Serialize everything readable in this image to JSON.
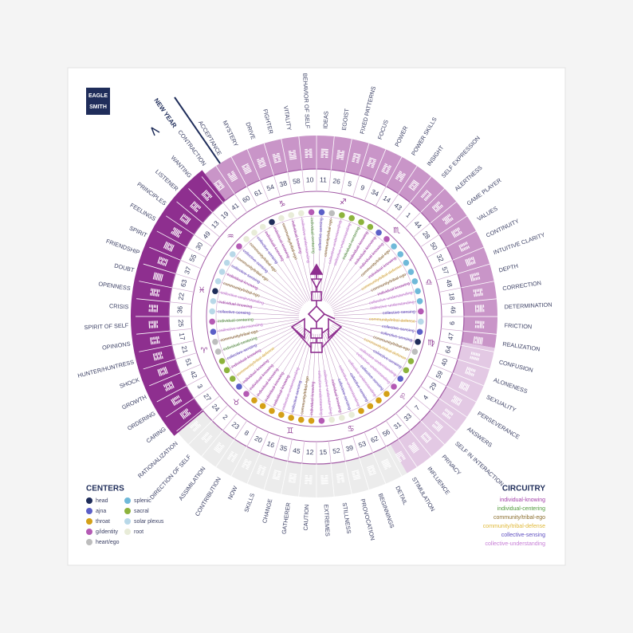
{
  "logo": {
    "line1": "EAGLE",
    "line2": "SMITH"
  },
  "new_year": "NEW YEAR",
  "gates": [
    {
      "number": 10,
      "keyword": "BEHAVIOR OF SELF",
      "circuit": "individual-centering",
      "dot_color": "#b45ab4"
    },
    {
      "number": 11,
      "keyword": "IDEAS",
      "circuit": "collective-sensing",
      "dot_color": "#5b5fc7"
    },
    {
      "number": 26,
      "keyword": "EGOIST",
      "circuit": "community/tribal-ego",
      "dot_color": "#bdbdbd"
    },
    {
      "number": 5,
      "keyword": "FIXED PATTERNS",
      "circuit": "collective-understanding",
      "dot_color": "#8db33c"
    },
    {
      "number": 9,
      "keyword": "FOCUS",
      "circuit": "collective-understanding",
      "dot_color": "#8db33c"
    },
    {
      "number": 34,
      "keyword": "POWER",
      "circuit": "individual-centering",
      "dot_color": "#8db33c"
    },
    {
      "number": 14,
      "keyword": "POWER SKILLS",
      "circuit": "individual-knowing",
      "dot_color": "#8db33c"
    },
    {
      "number": 43,
      "keyword": "INSIGHT",
      "circuit": "individual-knowing",
      "dot_color": "#5b5fc7"
    },
    {
      "number": 1,
      "keyword": "SELF EXPRESSION",
      "circuit": "individual-knowing",
      "dot_color": "#b45ab4"
    },
    {
      "number": 44,
      "keyword": "ALERTNESS",
      "circuit": "community/tribal-ego",
      "dot_color": "#6fb9d9"
    },
    {
      "number": 28,
      "keyword": "GAME PLAYER",
      "circuit": "individual-knowing",
      "dot_color": "#6fb9d9"
    },
    {
      "number": 50,
      "keyword": "VALUES",
      "circuit": "community/tribal-defense",
      "dot_color": "#6fb9d9"
    },
    {
      "number": 32,
      "keyword": "CONTINUITY",
      "circuit": "community/tribal-ego",
      "dot_color": "#6fb9d9"
    },
    {
      "number": 57,
      "keyword": "INTUITIVE CLARITY",
      "circuit": "individual-knowing",
      "dot_color": "#6fb9d9"
    },
    {
      "number": 48,
      "keyword": "DEPTH",
      "circuit": "collective-understanding",
      "dot_color": "#6fb9d9"
    },
    {
      "number": 18,
      "keyword": "CORRECTION",
      "circuit": "collective-understanding",
      "dot_color": "#6fb9d9"
    },
    {
      "number": 46,
      "keyword": "DETERMINATION",
      "circuit": "collective-sensing",
      "dot_color": "#b45ab4"
    },
    {
      "number": 6,
      "keyword": "FRICTION",
      "circuit": "community/tribal-defense",
      "dot_color": "#b8d8e8"
    },
    {
      "number": 47,
      "keyword": "REALIZATION",
      "circuit": "collective-sensing",
      "dot_color": "#5b5fc7"
    },
    {
      "number": 64,
      "keyword": "CONFUSION",
      "circuit": "collective-sensing",
      "dot_color": "#1f2d5a"
    },
    {
      "number": 40,
      "keyword": "ALONENESS",
      "circuit": "community/tribal-ego",
      "dot_color": "#bdbdbd"
    },
    {
      "number": 59,
      "keyword": "SEXUALITY",
      "circuit": "community/tribal-defense",
      "dot_color": "#8db33c"
    },
    {
      "number": 29,
      "keyword": "PERSEVERANCE",
      "circuit": "collective-sensing",
      "dot_color": "#8db33c"
    },
    {
      "number": 4,
      "keyword": "ANSWERS",
      "circuit": "collective-understanding",
      "dot_color": "#5b5fc7"
    },
    {
      "number": 7,
      "keyword": "SELF IN INTERACTION",
      "circuit": "collective-understanding",
      "dot_color": "#b45ab4"
    },
    {
      "number": 33,
      "keyword": "PRIVACY",
      "circuit": "collective-sensing",
      "dot_color": "#d4a017"
    },
    {
      "number": 31,
      "keyword": "INFLUENCE",
      "circuit": "collective-understanding",
      "dot_color": "#d4a017"
    },
    {
      "number": 56,
      "keyword": "STIMULATION",
      "circuit": "collective-sensing",
      "dot_color": "#d4a017"
    },
    {
      "number": 62,
      "keyword": "DETAIL",
      "circuit": "collective-understanding",
      "dot_color": "#d4a017"
    },
    {
      "number": 53,
      "keyword": "BEGINNINGS",
      "circuit": "collective-sensing",
      "dot_color": "#e8ecd8"
    },
    {
      "number": 39,
      "keyword": "PROVOCATION",
      "circuit": "individual-knowing",
      "dot_color": "#e8ecd8"
    },
    {
      "number": 52,
      "keyword": "STILLNESS",
      "circuit": "collective-understanding",
      "dot_color": "#e8ecd8"
    },
    {
      "number": 15,
      "keyword": "EXTREMES",
      "circuit": "collective-understanding",
      "dot_color": "#b45ab4"
    },
    {
      "number": 12,
      "keyword": "CAUTION",
      "circuit": "individual-knowing",
      "dot_color": "#d4a017"
    },
    {
      "number": 45,
      "keyword": "GATHERER",
      "circuit": "community/tribal-ego",
      "dot_color": "#d4a017"
    },
    {
      "number": 35,
      "keyword": "CHANGE",
      "circuit": "collective-sensing",
      "dot_color": "#d4a017"
    },
    {
      "number": 16,
      "keyword": "SKILLS",
      "circuit": "collective-understanding",
      "dot_color": "#d4a017"
    },
    {
      "number": 20,
      "keyword": "NOW",
      "circuit": "individual-knowing",
      "dot_color": "#d4a017"
    },
    {
      "number": 8,
      "keyword": "CONTRIBUTION",
      "circuit": "individual-knowing",
      "dot_color": "#d4a017"
    },
    {
      "number": 23,
      "keyword": "ASSIMILATION",
      "circuit": "individual-knowing",
      "dot_color": "#d4a017"
    },
    {
      "number": 2,
      "keyword": "DIRECTION OF SELF",
      "circuit": "individual-knowing",
      "dot_color": "#b45ab4"
    },
    {
      "number": 24,
      "keyword": "RATIONALIZATION",
      "circuit": "individual-knowing",
      "dot_color": "#5b5fc7"
    },
    {
      "number": 27,
      "keyword": "CARING",
      "circuit": "community/tribal-defense",
      "dot_color": "#8db33c"
    },
    {
      "number": 3,
      "keyword": "ORDERING",
      "circuit": "individual-knowing",
      "dot_color": "#8db33c"
    },
    {
      "number": 42,
      "keyword": "GROWTH",
      "circuit": "collective-sensing",
      "dot_color": "#8db33c"
    },
    {
      "number": 51,
      "keyword": "SHOCK",
      "circuit": "individual-centering",
      "dot_color": "#bdbdbd"
    },
    {
      "number": 21,
      "keyword": "HUNTER/HUNTRESS",
      "circuit": "community/tribal-ego",
      "dot_color": "#bdbdbd"
    },
    {
      "number": 17,
      "keyword": "OPINIONS",
      "circuit": "collective-understanding",
      "dot_color": "#5b5fc7"
    },
    {
      "number": 25,
      "keyword": "SPIRIT OF SELF",
      "circuit": "individual-centering",
      "dot_color": "#b45ab4"
    },
    {
      "number": 36,
      "keyword": "CRISIS",
      "circuit": "collective-sensing",
      "dot_color": "#b8d8e8"
    },
    {
      "number": 22,
      "keyword": "OPENNESS",
      "circuit": "individual-knowing",
      "dot_color": "#b8d8e8"
    },
    {
      "number": 63,
      "keyword": "DOUBT",
      "circuit": "collective-understanding",
      "dot_color": "#1f2d5a"
    },
    {
      "number": 37,
      "keyword": "FRIENDSHIP",
      "circuit": "community/tribal-ego",
      "dot_color": "#b8d8e8"
    },
    {
      "number": 55,
      "keyword": "SPIRIT",
      "circuit": "individual-knowing",
      "dot_color": "#b8d8e8"
    },
    {
      "number": 30,
      "keyword": "FEELINGS",
      "circuit": "collective-sensing",
      "dot_color": "#b8d8e8"
    },
    {
      "number": 49,
      "keyword": "PRINCIPLES",
      "circuit": "community/tribal-ego",
      "dot_color": "#b8d8e8"
    },
    {
      "number": 13,
      "keyword": "LISTENER",
      "circuit": "collective-sensing",
      "dot_color": "#b45ab4"
    },
    {
      "number": 19,
      "keyword": "WANTING",
      "circuit": "community/tribal-ego",
      "dot_color": "#e8ecd8"
    },
    {
      "number": 41,
      "keyword": "CONTRACTION",
      "circuit": "collective-sensing",
      "dot_color": "#e8ecd8"
    },
    {
      "number": 60,
      "keyword": "ACCEPTANCE",
      "circuit": "individual-knowing",
      "dot_color": "#e8ecd8"
    },
    {
      "number": 61,
      "keyword": "MYSTERY",
      "circuit": "individual-knowing",
      "dot_color": "#1f2d5a"
    },
    {
      "number": 54,
      "keyword": "DRIVE",
      "circuit": "community/tribal-ego",
      "dot_color": "#e8ecd8"
    },
    {
      "number": 38,
      "keyword": "FIGHTER",
      "circuit": "individual-knowing",
      "dot_color": "#e8ecd8"
    },
    {
      "number": 58,
      "keyword": "VITALITY",
      "circuit": "collective-understanding",
      "dot_color": "#e8ecd8"
    }
  ],
  "zodiac": [
    "♑",
    "♐",
    "♏",
    "♎",
    "♍",
    "♌",
    "♋",
    "♊",
    "♉",
    "♈",
    "♓",
    "♒"
  ],
  "centers_legend": {
    "title": "CENTERS",
    "items": [
      {
        "name": "head",
        "color": "#1f2d5a"
      },
      {
        "name": "ajna",
        "color": "#5b5fc7"
      },
      {
        "name": "throat",
        "color": "#d4a017"
      },
      {
        "name": "g/identity",
        "color": "#b45ab4"
      },
      {
        "name": "heart/ego",
        "color": "#bdbdbd"
      },
      {
        "name": "splenic",
        "color": "#6fb9d9"
      },
      {
        "name": "sacral",
        "color": "#8db33c"
      },
      {
        "name": "solar plexus",
        "color": "#b8d8e8"
      },
      {
        "name": "root",
        "color": "#e8ecd8"
      }
    ]
  },
  "circuitry_legend": {
    "title": "CIRCUITRY",
    "items": [
      {
        "name": "individual-knowing",
        "color": "#a23fa8"
      },
      {
        "name": "individual-centering",
        "color": "#4f9a3a"
      },
      {
        "name": "community/tribal-ego",
        "color": "#8a6d2c"
      },
      {
        "name": "community/tribal-defense",
        "color": "#e0b93a"
      },
      {
        "name": "collective-sensing",
        "color": "#5f4fc0"
      },
      {
        "name": "collective-understanding",
        "color": "#c77ed6"
      }
    ]
  }
}
